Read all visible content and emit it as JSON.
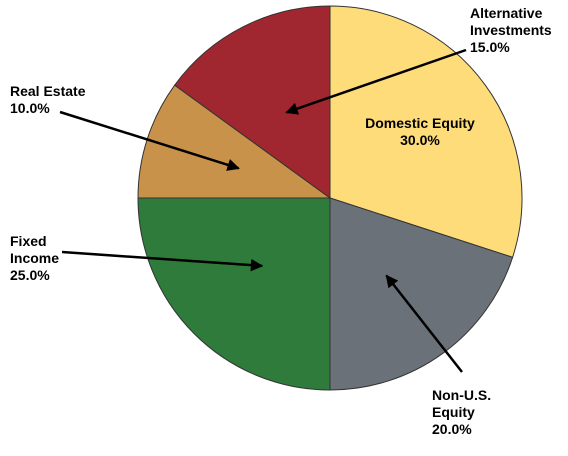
{
  "chart_data": {
    "type": "pie",
    "categories": [
      "Domestic Equity",
      "Non-U.S.\nEquity",
      "Fixed\nIncome",
      "Real Estate",
      "Alternative\nInvestments"
    ],
    "values": [
      30,
      20,
      25,
      10,
      15
    ],
    "value_labels": [
      "30.0%",
      "20.0%",
      "25.0%",
      "10.0%",
      "15.0%"
    ],
    "colors": [
      "#fedc7a",
      "#6b7178",
      "#2e7b3c",
      "#c9924a",
      "#a0262f"
    ]
  }
}
